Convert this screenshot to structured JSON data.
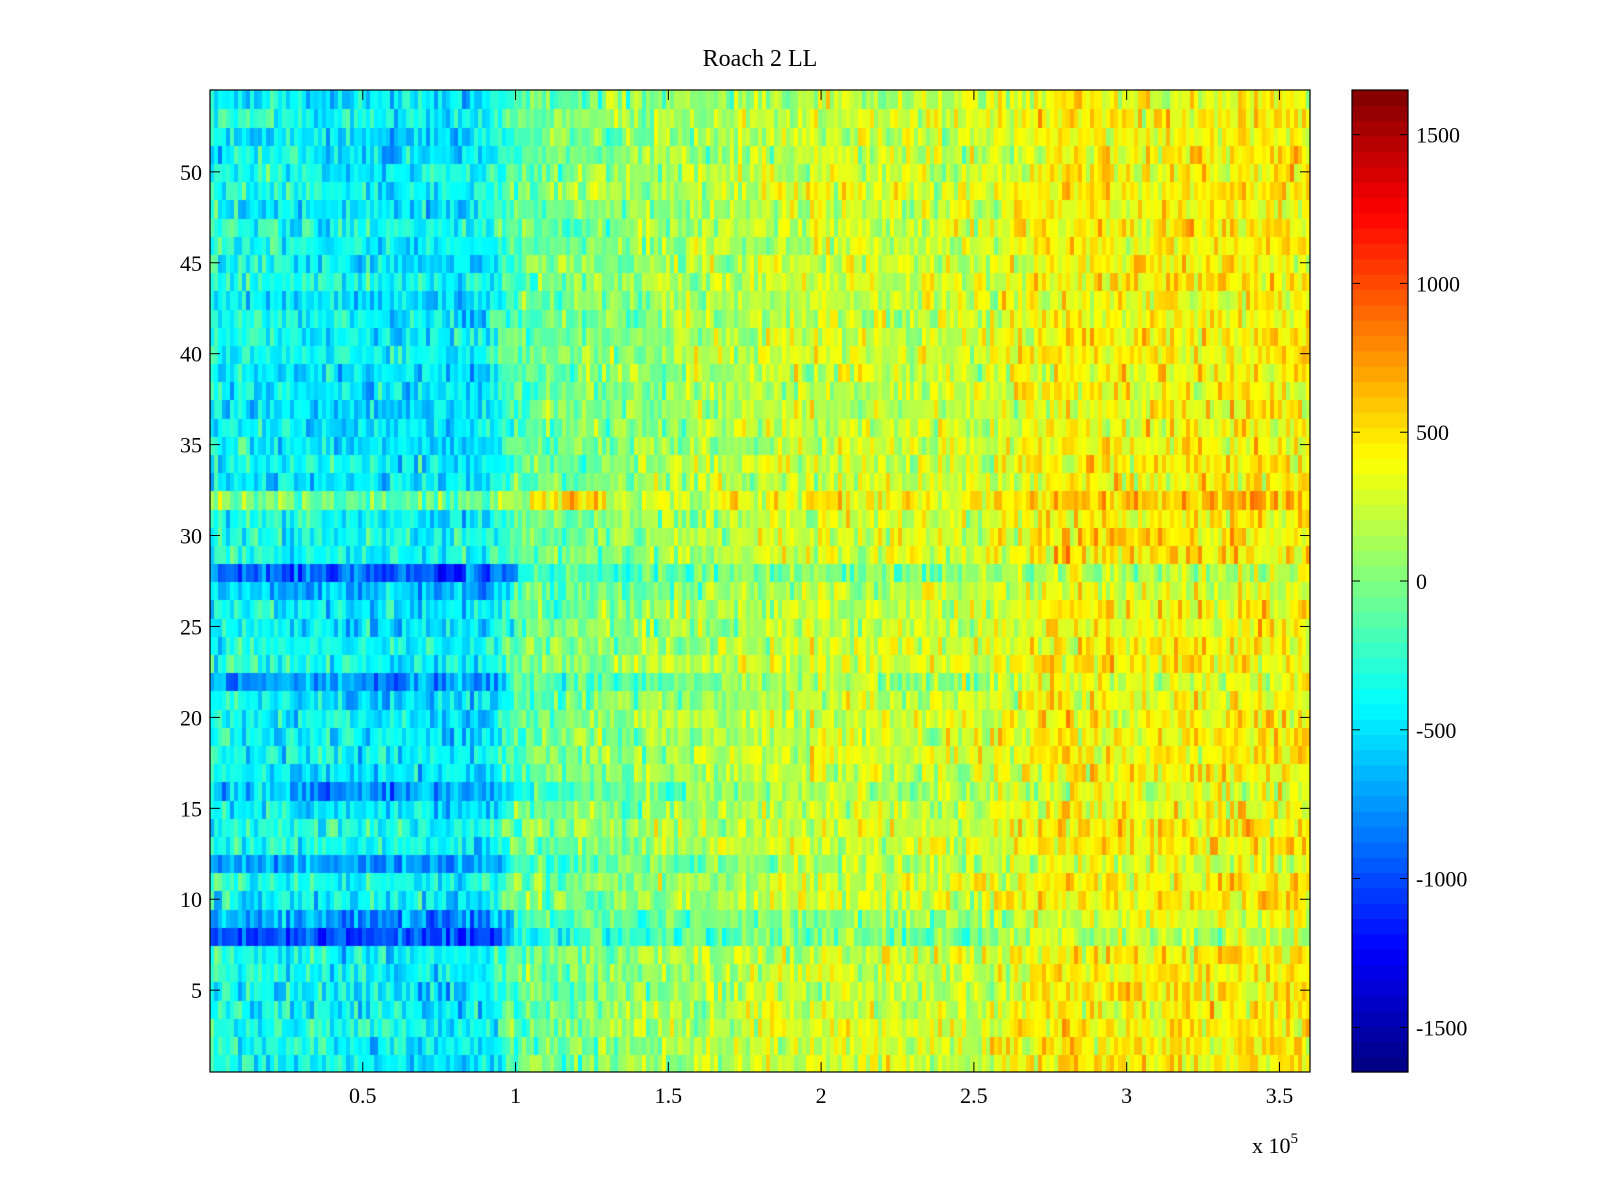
{
  "chart_data": {
    "type": "heatmap",
    "title": "Roach 2 LL",
    "xlabel": "",
    "ylabel": "",
    "x_exponent_label": "x 10",
    "x_exponent_power": "5",
    "xlim": [
      0,
      3.6
    ],
    "ylim": [
      0.5,
      54.5
    ],
    "x_ticks": [
      0.5,
      1,
      1.5,
      2,
      2.5,
      3,
      3.5
    ],
    "x_tick_labels": [
      "0.5",
      "1",
      "1.5",
      "2",
      "2.5",
      "3",
      "3.5"
    ],
    "y_ticks": [
      5,
      10,
      15,
      20,
      25,
      30,
      35,
      40,
      45,
      50
    ],
    "y_tick_labels": [
      "5",
      "10",
      "15",
      "20",
      "25",
      "30",
      "35",
      "40",
      "45",
      "50"
    ],
    "rows": 54,
    "colormap": "jet",
    "colorbar": {
      "clim": [
        -1650,
        1650
      ],
      "ticks": [
        -1500,
        -1000,
        -500,
        0,
        500,
        1000,
        1500
      ],
      "tick_labels": [
        "-1500",
        "-1000",
        "-500",
        "0",
        "500",
        "1000",
        "1500"
      ]
    },
    "column_profile": {
      "x": [
        0,
        0.5,
        0.9,
        1.0,
        1.5,
        2.0,
        2.5,
        2.8,
        3.0,
        3.6
      ],
      "mean_value": [
        -350,
        -450,
        -480,
        -100,
        100,
        250,
        250,
        450,
        400,
        450
      ]
    },
    "row_offsets": {
      "rows": [
        8,
        9,
        12,
        16,
        22,
        27,
        28,
        32
      ],
      "offset": [
        -500,
        -400,
        -300,
        -250,
        -250,
        -200,
        -500,
        300
      ]
    }
  }
}
